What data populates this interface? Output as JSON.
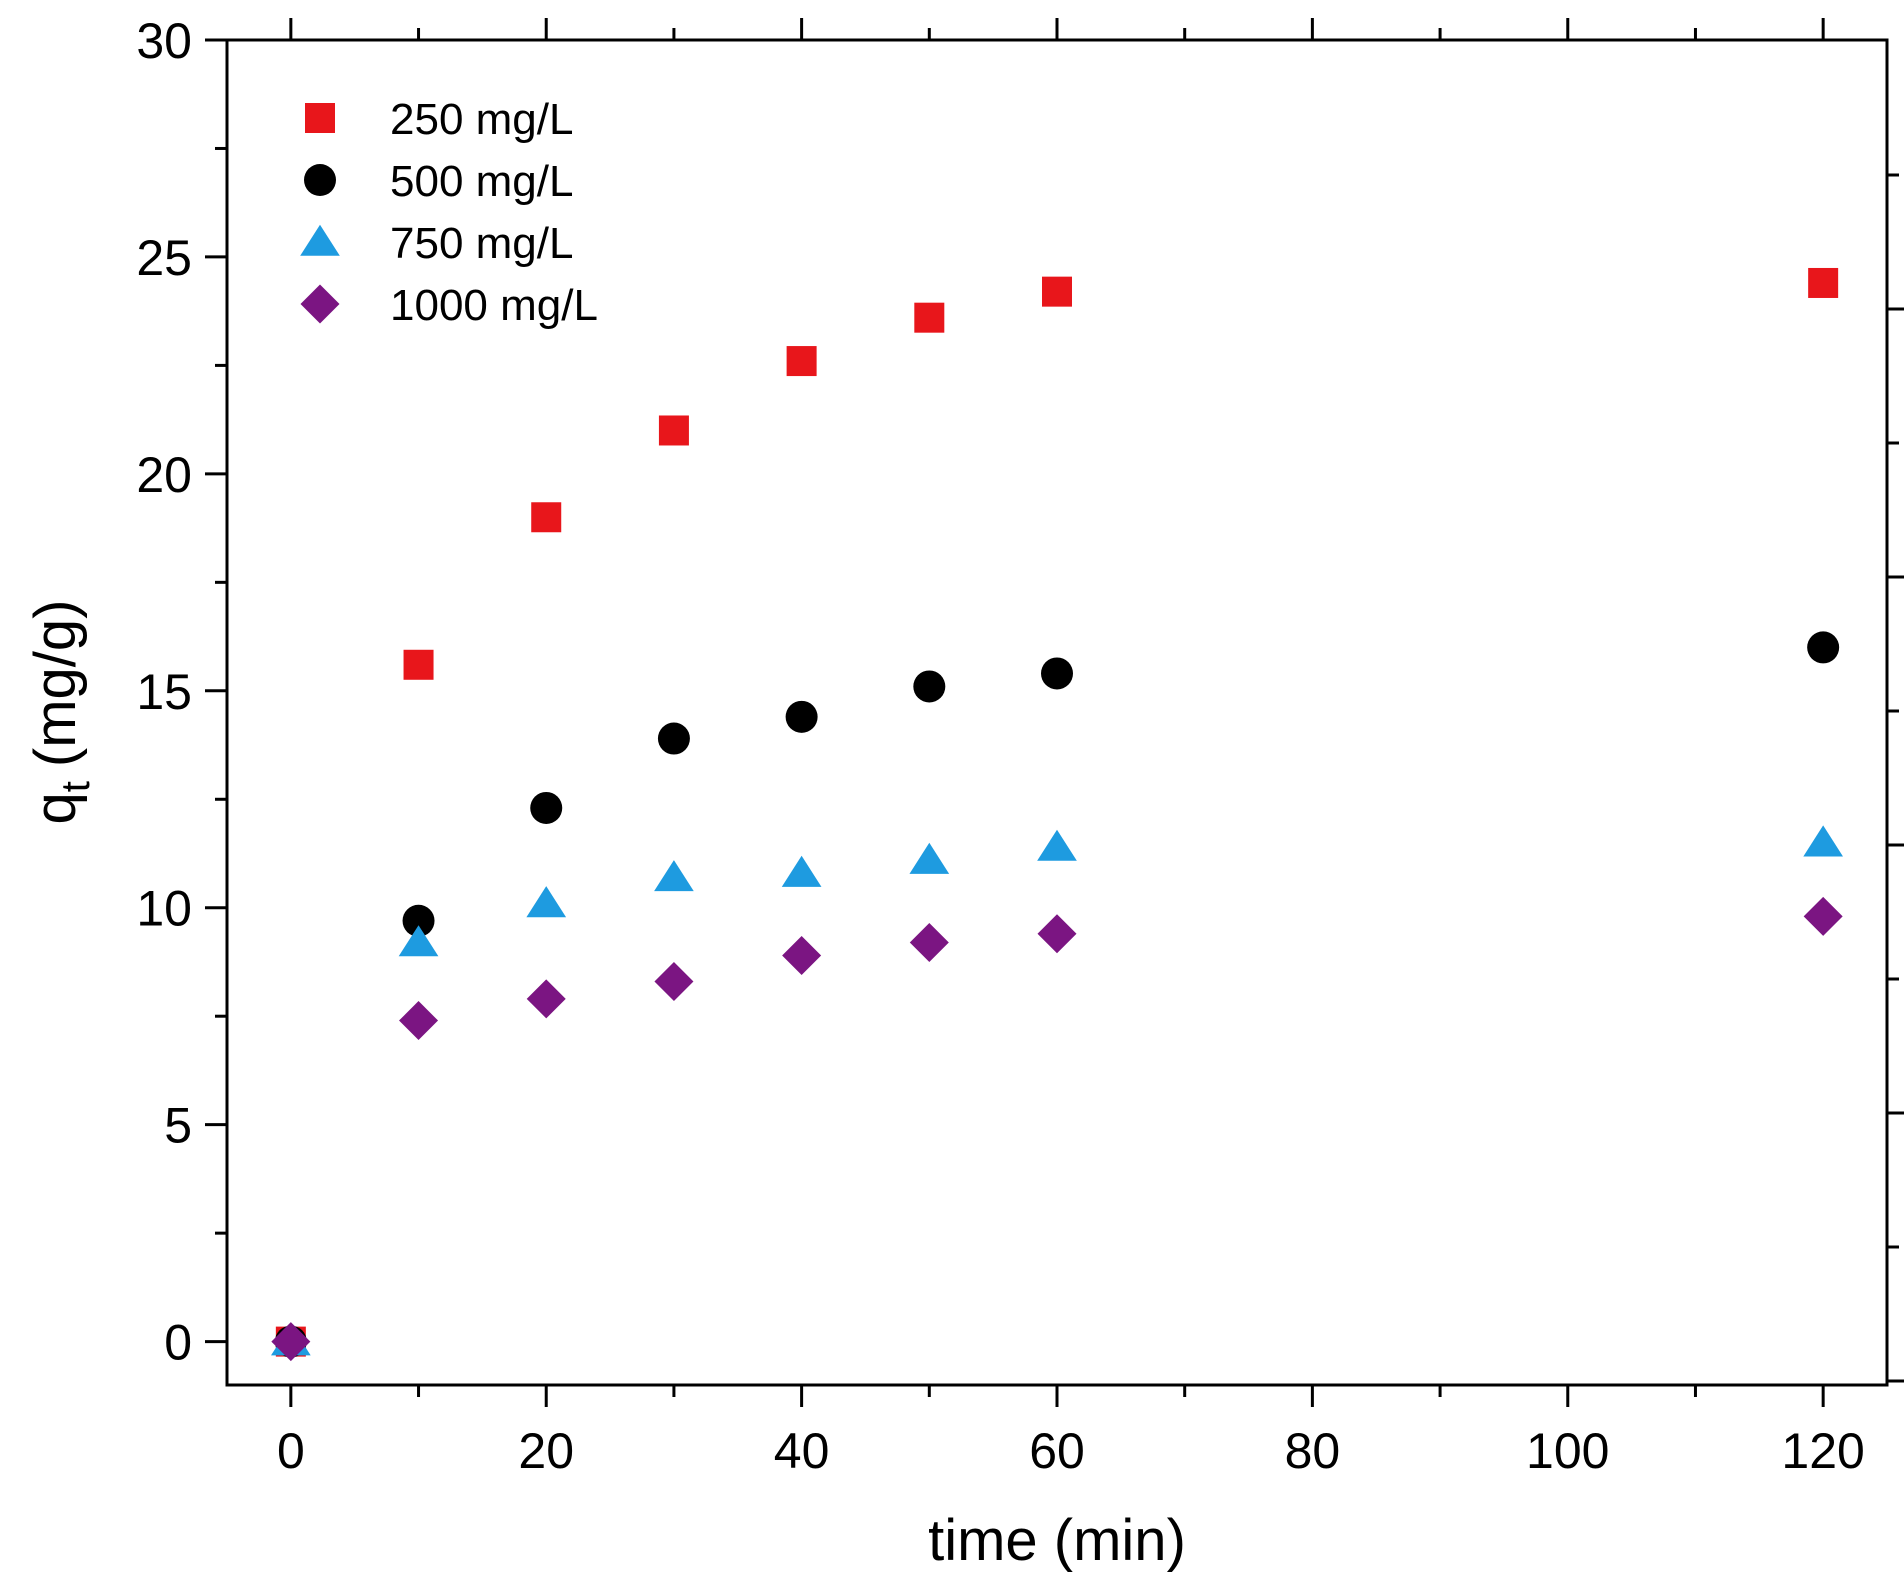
{
  "chart_data": {
    "type": "scatter",
    "title": "",
    "xlabel": "time (min)",
    "ylabel": "q",
    "ylabel_subscript": "t",
    "ylabel_units": "(mg/g)",
    "xlim": [
      -5,
      125
    ],
    "ylim": [
      -1,
      30
    ],
    "xticks": [
      0,
      20,
      40,
      60,
      80,
      100,
      120
    ],
    "xtick_labels": [
      "0",
      "20",
      "40",
      "60",
      "80",
      "100",
      "120"
    ],
    "yticks": [
      0,
      5,
      10,
      15,
      20,
      25,
      30
    ],
    "ytick_labels": [
      "0",
      "5",
      "10",
      "15",
      "20",
      "25",
      "30"
    ],
    "grid": false,
    "legend_position": "top-left",
    "x": [
      0,
      10,
      20,
      30,
      40,
      50,
      60,
      120
    ],
    "series": [
      {
        "name": "250 mg/L",
        "marker": "square",
        "color": "#e8161b",
        "values": [
          0,
          15.6,
          19.0,
          21.0,
          22.6,
          23.6,
          24.2,
          24.4
        ]
      },
      {
        "name": "500 mg/L",
        "marker": "circle",
        "color": "#000000",
        "values": [
          0,
          9.7,
          12.3,
          13.9,
          14.4,
          15.1,
          15.4,
          16.0
        ]
      },
      {
        "name": "750 mg/L",
        "marker": "triangle",
        "color": "#1e9be0",
        "values": [
          0,
          9.2,
          10.1,
          10.7,
          10.8,
          11.1,
          11.4,
          11.5
        ]
      },
      {
        "name": "1000 mg/L",
        "marker": "diamond",
        "color": "#7b1582",
        "values": [
          0,
          7.4,
          7.9,
          8.3,
          8.9,
          9.2,
          9.4,
          9.8
        ]
      }
    ]
  }
}
